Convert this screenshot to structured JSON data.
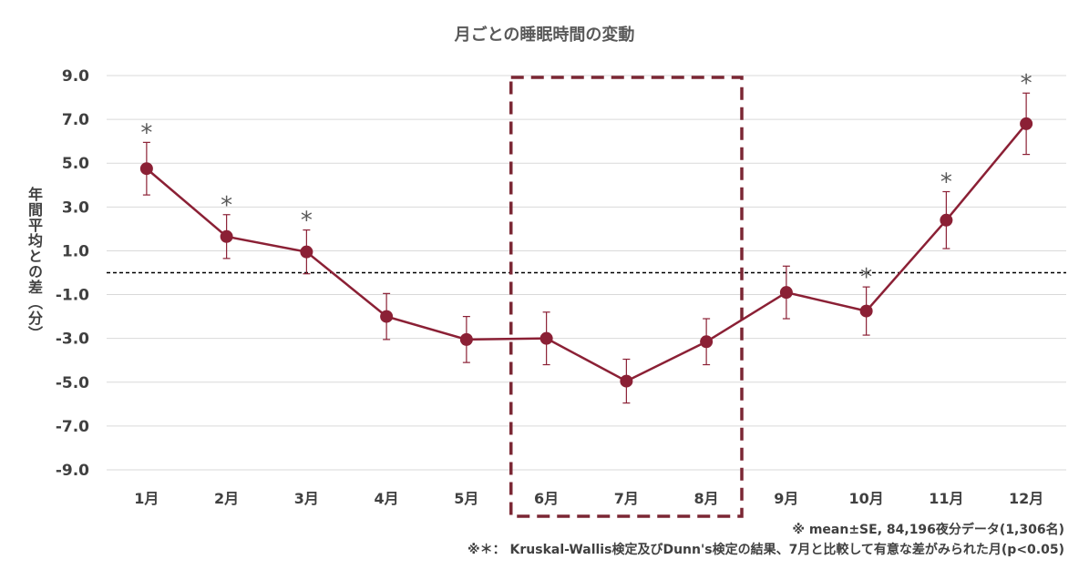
{
  "chart_data": {
    "type": "line",
    "title": "月ごとの睡眠時間の変動",
    "ylabel": "年間平均との差（分）",
    "xlabel": "",
    "categories": [
      "1月",
      "2月",
      "3月",
      "4月",
      "5月",
      "6月",
      "7月",
      "8月",
      "9月",
      "10月",
      "11月",
      "12月"
    ],
    "series": [
      {
        "name": "年間平均との差",
        "values": [
          4.75,
          1.65,
          0.95,
          -2.0,
          -3.05,
          -3.0,
          -4.95,
          -3.15,
          -0.9,
          -1.75,
          2.4,
          6.8
        ],
        "error": [
          1.2,
          1.0,
          1.0,
          1.05,
          1.05,
          1.2,
          1.0,
          1.05,
          1.2,
          1.1,
          1.3,
          1.4
        ],
        "significant": [
          true,
          true,
          true,
          false,
          false,
          false,
          false,
          false,
          false,
          true,
          true,
          true
        ],
        "color": "#8b2035"
      }
    ],
    "ylim": [
      -9.0,
      9.0
    ],
    "yticks": [
      "9.0",
      "7.0",
      "5.0",
      "3.0",
      "1.0",
      "-1.0",
      "-3.0",
      "-5.0",
      "-7.0",
      "-9.0"
    ],
    "reference_line": 0,
    "highlight_range": [
      "6月",
      "8月"
    ],
    "significance_marker": "*",
    "grid": true,
    "notes": [
      "※ mean±SE, 84,196夜分データ(1,306名)",
      "※＊： Kruskal-Wallis検定及びDunn's検定の結果、7月と比較して有意な差がみられた月(p<0.05)"
    ]
  },
  "colors": {
    "line": "#8b2035",
    "highlight_box": "#7b2734",
    "grid": "#d9d9d9",
    "text": "#404040"
  }
}
